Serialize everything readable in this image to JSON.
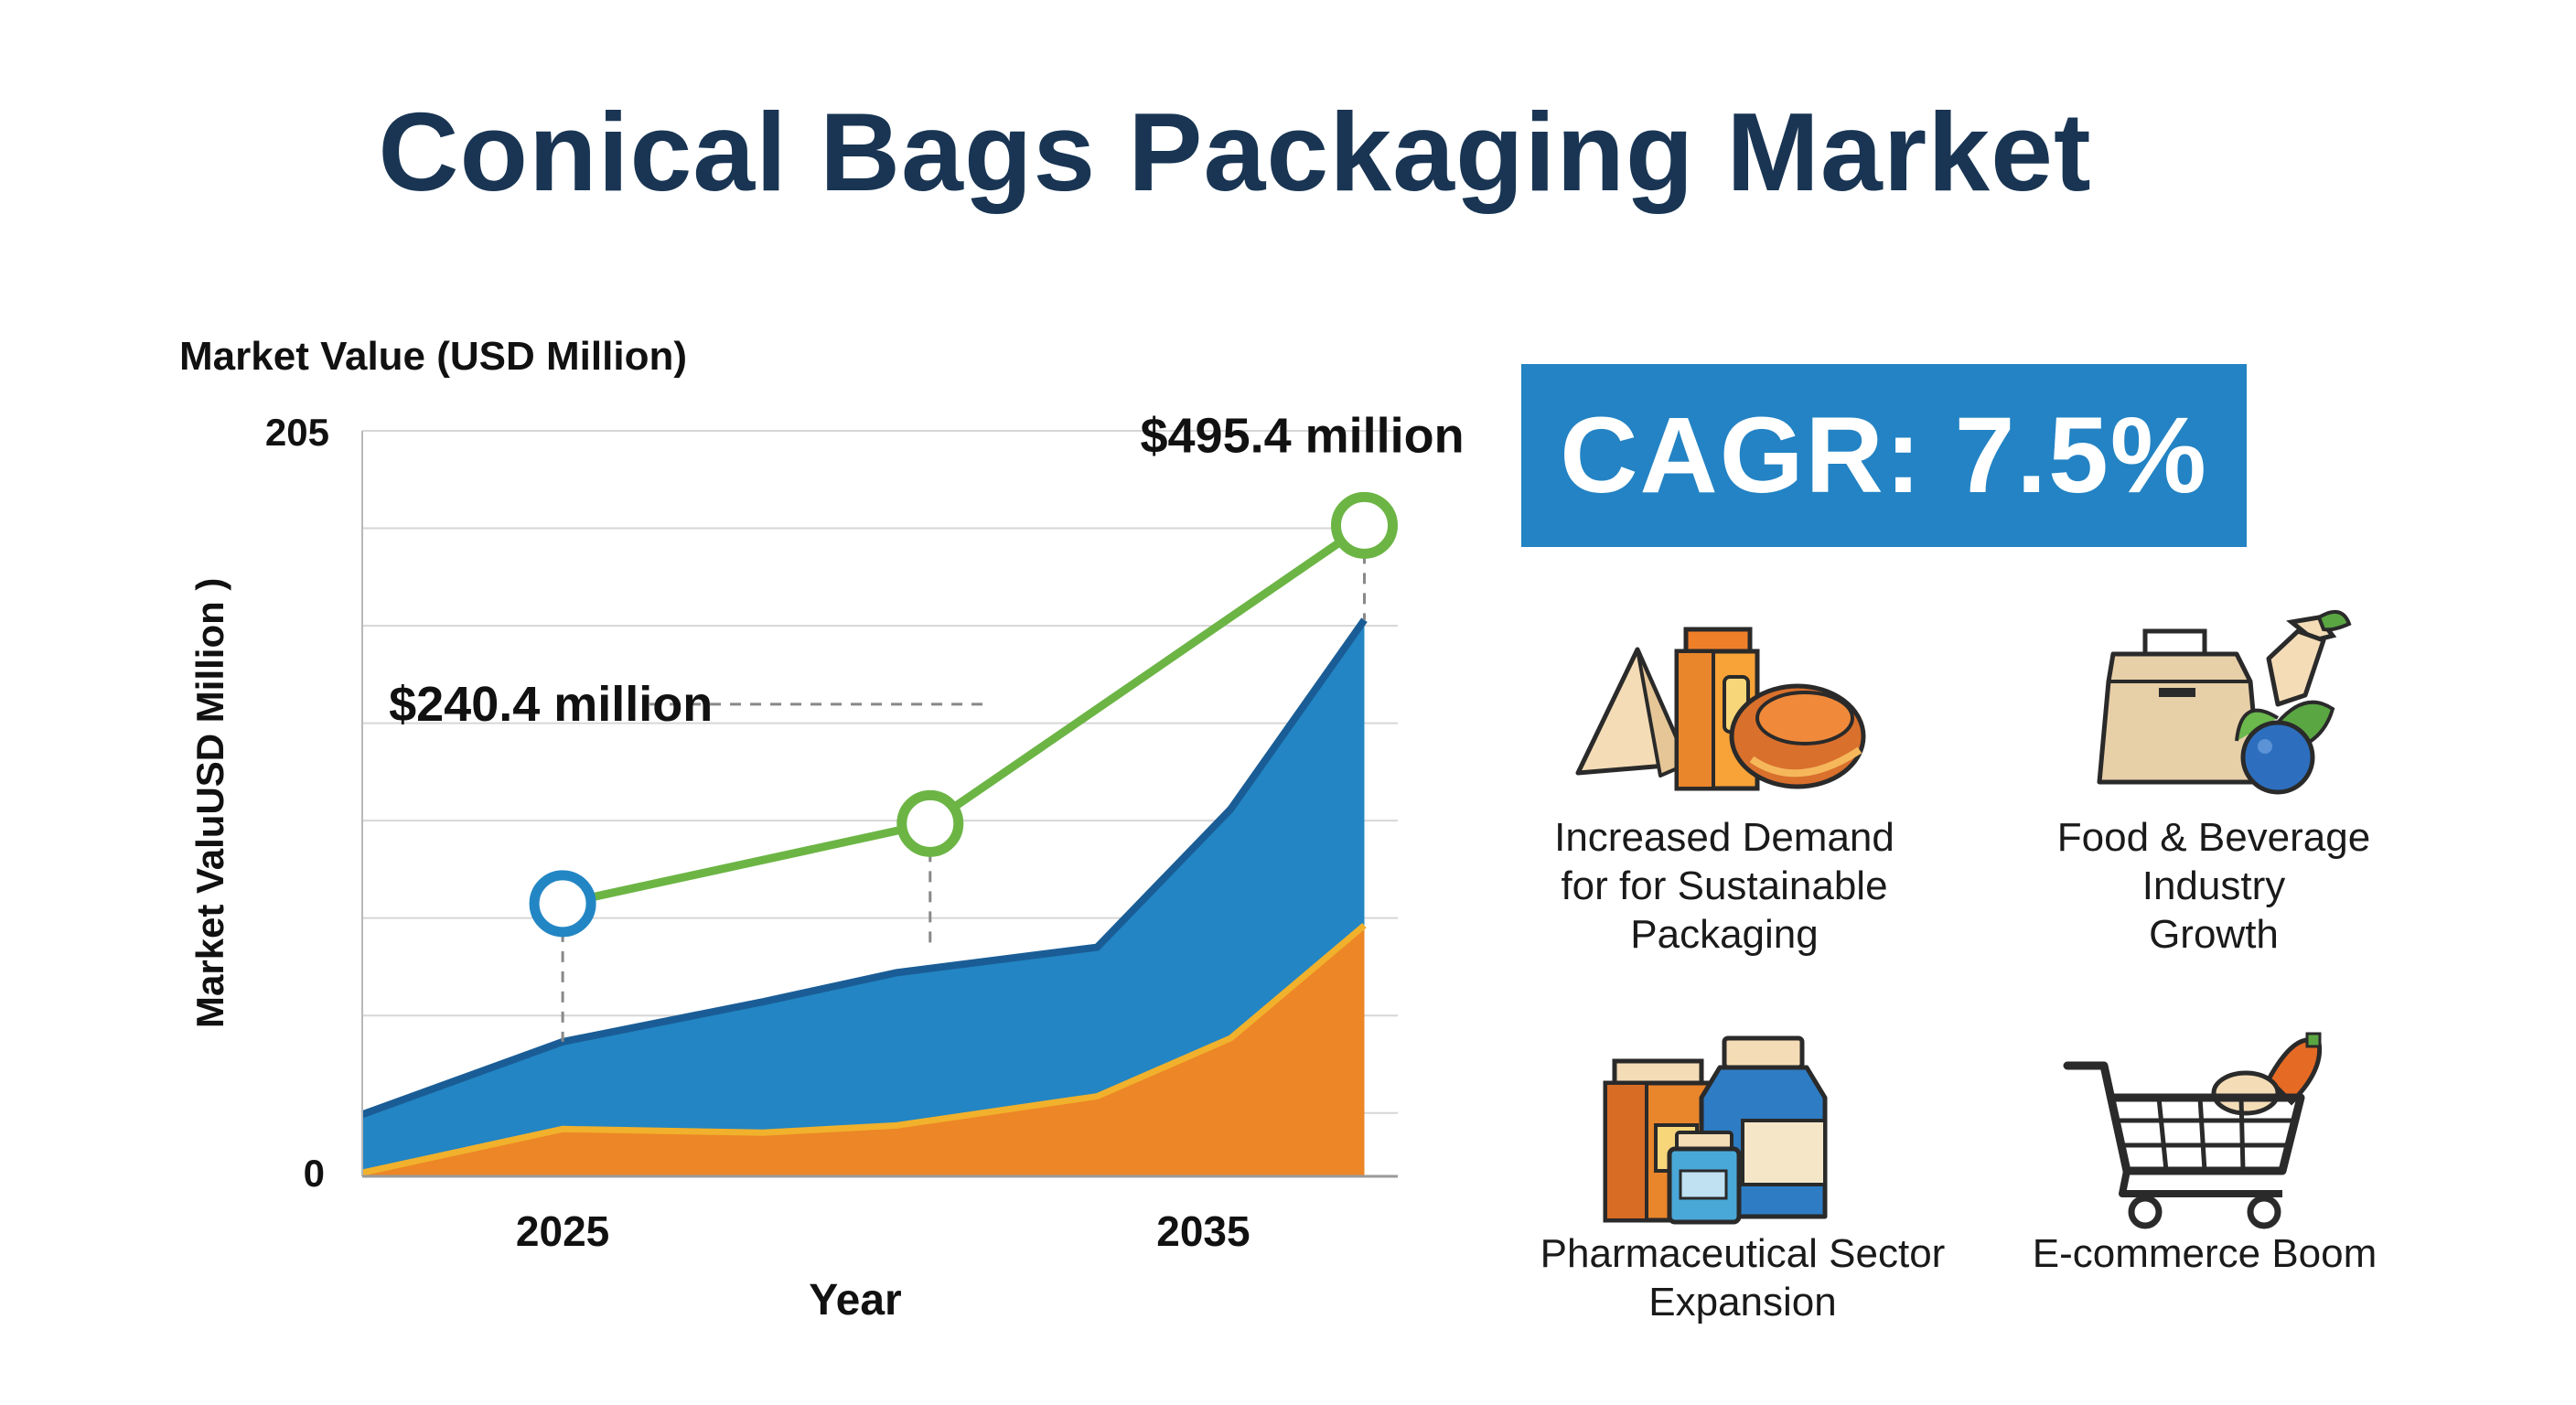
{
  "title": "Conical Bags Packaging Market",
  "cagr": "CAGR: 7.5%",
  "colors": {
    "title": "#193553",
    "cagr_box": "#2383c4",
    "area_blue": "#2385c3",
    "area_blue_edge": "#1a5d96",
    "area_orange": "#ec8626",
    "area_orange_edge": "#f1b12c",
    "line_green": "#6cb545",
    "marker_blue": "#2386c4",
    "marker_green": "#6cb545"
  },
  "chart_data": {
    "type": "area",
    "title": "",
    "ylabel_top": "Market Value (USD Million)",
    "ylabel_side": "Market ValuUSD Million )",
    "xlabel": "Year",
    "ylim": [
      0,
      205
    ],
    "y_ticks": [
      "0",
      "205"
    ],
    "x_ticks": [
      {
        "label": "2025",
        "x": 2025
      },
      {
        "label": "2035",
        "x": 2035
      }
    ],
    "x_range": [
      2022,
      2037.5
    ],
    "series": [
      {
        "type": "area",
        "x": [
          2022,
          2025,
          2028,
          2030,
          2033,
          2035,
          2037
        ],
        "values": [
          17,
          37,
          48,
          56,
          63,
          101,
          153
        ]
      },
      {
        "type": "area",
        "x": [
          2022,
          2025,
          2028,
          2030,
          2033,
          2035,
          2037
        ],
        "values": [
          1,
          13,
          12,
          14,
          22,
          38,
          69
        ]
      },
      {
        "type": "line",
        "x": [
          2025,
          2030.5,
          2037
        ],
        "values": [
          75,
          97,
          179
        ]
      }
    ],
    "annotations": [
      {
        "text": "$240.4 million",
        "x": 2025,
        "y": 75
      },
      {
        "text": "$495.4 million",
        "x": 2037,
        "y": 179
      }
    ],
    "grid": true
  },
  "drivers": [
    {
      "icon": "packaging-products-icon",
      "label": "Increased Demand\nfor for Sustainable\nPackaging"
    },
    {
      "icon": "food-bag-produce-icon",
      "label": "Food & Beverage\nIndustry\nGrowth"
    },
    {
      "icon": "pharma-bottles-icon",
      "label": "Pharmaceutical Sector\nExpansion"
    },
    {
      "icon": "shopping-cart-icon",
      "label": "E-commerce Boom"
    }
  ]
}
